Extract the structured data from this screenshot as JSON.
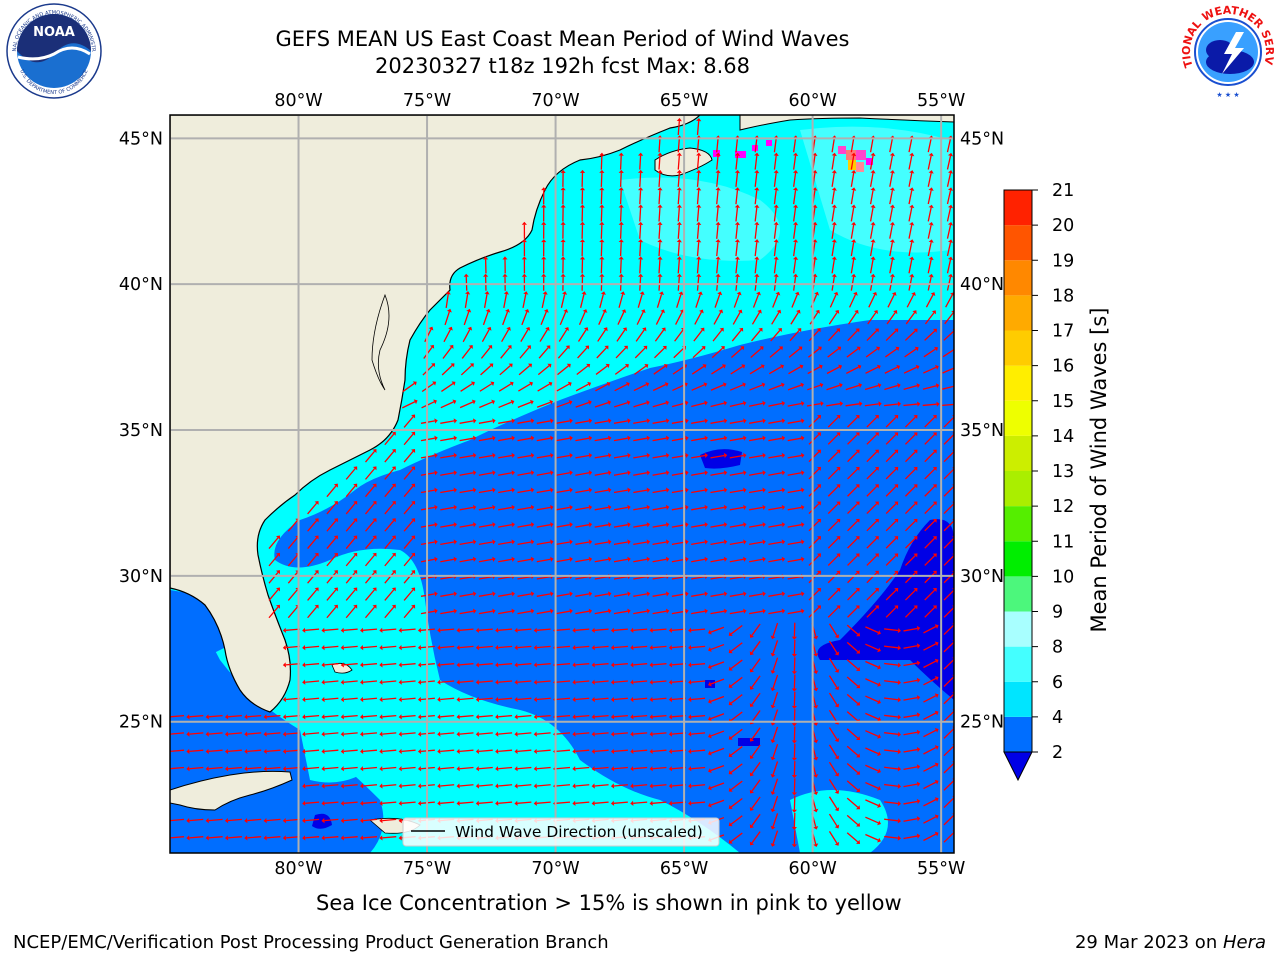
{
  "title": {
    "line1": "GEFS MEAN US East Coast Mean Period of Wind Waves",
    "line2": "20230327 t18z 192h fcst   Max: 8.68"
  },
  "map": {
    "lon_labels": [
      "80°W",
      "75°W",
      "70°W",
      "65°W",
      "60°W",
      "55°W"
    ],
    "lat_labels": [
      "45°N",
      "40°N",
      "35°N",
      "30°N",
      "25°N"
    ],
    "lon_range": [
      -85,
      -54.5
    ],
    "lat_range": [
      20.5,
      45.8
    ],
    "legend_label": "Wind Wave Direction (unscaled)",
    "land_color": "#efeddc",
    "grid_color": "#b0b0b0",
    "arrow_color": "#ff0000"
  },
  "colorbar": {
    "label": "Mean Period of Wind Waves [s]",
    "ticks": [
      "2",
      "4",
      "6",
      "8",
      "9",
      "10",
      "11",
      "12",
      "13",
      "14",
      "15",
      "16",
      "17",
      "18",
      "19",
      "20",
      "21"
    ],
    "colors": [
      "#006eff",
      "#00e5ff",
      "#44ffff",
      "#a8ffff",
      "#4cf77c",
      "#00ee00",
      "#55ee00",
      "#aaee00",
      "#ccee00",
      "#eeff00",
      "#ffee00",
      "#ffcc00",
      "#ffaa00",
      "#ff8800",
      "#ff5500",
      "#ff2200",
      "#ff0000"
    ],
    "extend_color": "#0000e6"
  },
  "chart_data": {
    "type": "heatmap",
    "title": "GEFS MEAN US East Coast Mean Period of Wind Waves",
    "subtitle": "20230327 t18z 192h fcst   Max: 8.68",
    "max": 8.68,
    "units": "s",
    "xlim": [
      -85,
      -54.5
    ],
    "ylim": [
      20.5,
      45.8
    ],
    "levels": [
      2,
      4,
      6,
      8,
      9,
      10,
      11,
      12,
      13,
      14,
      15,
      16,
      17,
      18,
      19,
      20,
      21
    ]
  },
  "notes": {
    "sea_ice": "Sea Ice Concentration > 15% is shown in pink to yellow"
  },
  "footer": {
    "left": "NCEP/EMC/Verification Post Processing Product Generation Branch",
    "date": "29 Mar 2023 on ",
    "machine": "Hera"
  },
  "logos": {
    "noaa": "NOAA",
    "noaa_ring": "NATIONAL OCEANIC AND ATMOSPHERIC ADMINISTRATION",
    "noaa_ring_bottom": "U.S. DEPARTMENT OF COMMERCE",
    "nws_ring": "NATIONAL WEATHER SERVICE"
  }
}
